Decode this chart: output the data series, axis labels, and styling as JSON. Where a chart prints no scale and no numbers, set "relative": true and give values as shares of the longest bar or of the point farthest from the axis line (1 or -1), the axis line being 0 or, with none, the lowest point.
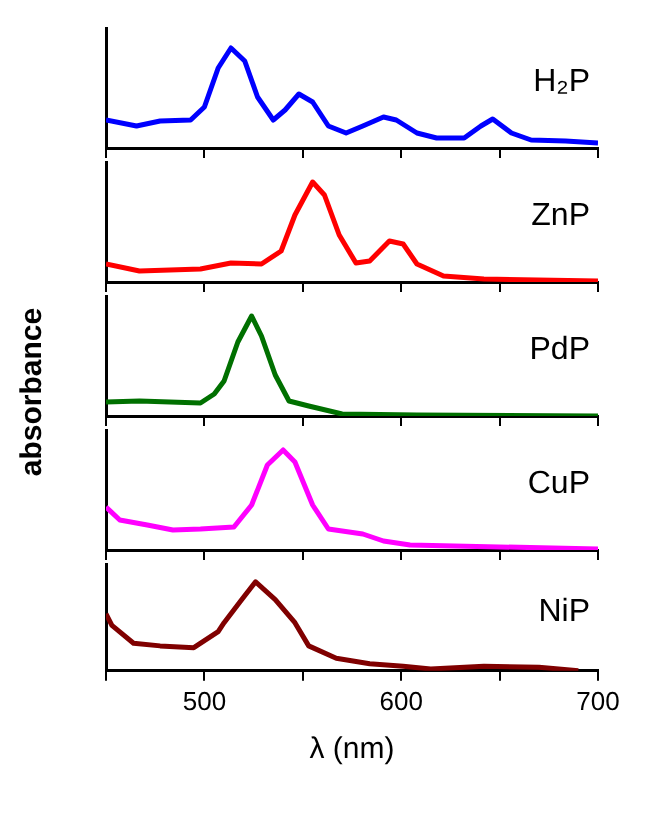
{
  "chart_data": [
    {
      "type": "line",
      "relative": true,
      "legend": false,
      "grid": false,
      "tick_labels": false,
      "marker": "none",
      "xlim": [
        450,
        700
      ],
      "xticks": [
        {
          "value": 450,
          "label": null
        },
        500,
        {
          "value": 550,
          "label": null
        },
        600,
        {
          "value": 650,
          "label": null
        },
        700
      ],
      "series": [
        {
          "name": "H₂P",
          "color": "#0000ff",
          "x": [
            450,
            465.5,
            477.5,
            493,
            500,
            507,
            513.5,
            520.5,
            527,
            535,
            541,
            548,
            555,
            563,
            572,
            580.5,
            591,
            597.5,
            608,
            618,
            632,
            640.5,
            646.5,
            656,
            666,
            683.5,
            700
          ],
          "values": [
            0.28,
            0.22,
            0.27,
            0.28,
            0.41,
            0.8,
            1,
            0.87,
            0.51,
            0.28,
            0.38,
            0.54,
            0.46,
            0.22,
            0.15,
            0.22,
            0.31,
            0.28,
            0.15,
            0.1,
            0.1,
            0.22,
            0.29,
            0.15,
            0.08,
            0.07,
            0.05
          ]
        }
      ]
    },
    {
      "type": "line",
      "relative": true,
      "legend": false,
      "grid": false,
      "tick_labels": false,
      "marker": "none",
      "xlim": [
        450,
        700
      ],
      "xticks": [
        {
          "value": 450,
          "label": null
        },
        500,
        {
          "value": 550,
          "label": null
        },
        600,
        {
          "value": 650,
          "label": null
        },
        700
      ],
      "series": [
        {
          "name": "ZnP",
          "color": "#ff0000",
          "x": [
            450,
            467,
            498,
            513.5,
            529,
            539,
            546,
            555,
            561,
            568.5,
            577,
            584,
            594,
            601,
            608,
            621.5,
            642,
            700
          ],
          "values": [
            0.18,
            0.11,
            0.13,
            0.19,
            0.18,
            0.31,
            0.67,
            1,
            0.87,
            0.47,
            0.19,
            0.21,
            0.41,
            0.38,
            0.18,
            0.06,
            0.03,
            0.01
          ]
        }
      ]
    },
    {
      "type": "line",
      "relative": true,
      "legend": false,
      "grid": false,
      "tick_labels": false,
      "marker": "none",
      "ylabel": "absorbance",
      "xlim": [
        450,
        700
      ],
      "xticks": [
        {
          "value": 450,
          "label": null
        },
        500,
        {
          "value": 550,
          "label": null
        },
        600,
        {
          "value": 650,
          "label": null
        },
        700
      ],
      "series": [
        {
          "name": "PdP",
          "color": "#007000",
          "x": [
            450,
            467,
            498,
            505,
            510,
            517,
            524,
            529,
            536,
            543,
            553,
            570,
            608,
            700
          ],
          "values": [
            0.14,
            0.15,
            0.13,
            0.22,
            0.35,
            0.74,
            1,
            0.8,
            0.41,
            0.15,
            0.1,
            0.02,
            0.01,
            0
          ]
        }
      ]
    },
    {
      "type": "line",
      "relative": true,
      "legend": false,
      "grid": false,
      "tick_labels": false,
      "marker": "none",
      "xlim": [
        450,
        700
      ],
      "xticks": [
        {
          "value": 450,
          "label": null
        },
        500,
        {
          "value": 550,
          "label": null
        },
        600,
        {
          "value": 650,
          "label": null
        },
        700
      ],
      "series": [
        {
          "name": "CuP",
          "color": "#ff00ff",
          "x": [
            450,
            457,
            471,
            484,
            498,
            515,
            524,
            532,
            540,
            546,
            555,
            563,
            580.5,
            591,
            604.5,
            700
          ],
          "values": [
            0.43,
            0.3,
            0.25,
            0.2,
            0.21,
            0.23,
            0.45,
            0.85,
            1,
            0.88,
            0.45,
            0.21,
            0.16,
            0.09,
            0.05,
            0.01
          ]
        }
      ]
    },
    {
      "type": "line",
      "relative": true,
      "legend": false,
      "grid": false,
      "tick_labels": "x",
      "marker": "none",
      "xlabel": "λ (nm)",
      "xlim": [
        450,
        700
      ],
      "xticks": [
        {
          "value": 450,
          "label": null
        },
        500,
        {
          "value": 550,
          "label": null
        },
        600,
        {
          "value": 650,
          "label": null
        },
        700
      ],
      "series": [
        {
          "name": "NiP",
          "color": "#800000",
          "x": [
            450,
            453,
            464,
            477.5,
            494.6,
            507,
            510,
            519,
            526,
            536,
            546,
            553,
            567,
            584,
            601,
            615,
            642,
            670,
            690
          ],
          "values": [
            0.64,
            0.51,
            0.31,
            0.28,
            0.26,
            0.44,
            0.54,
            0.8,
            1,
            0.8,
            0.54,
            0.28,
            0.14,
            0.08,
            0.05,
            0.02,
            0.05,
            0.04,
            0
          ]
        }
      ]
    }
  ]
}
